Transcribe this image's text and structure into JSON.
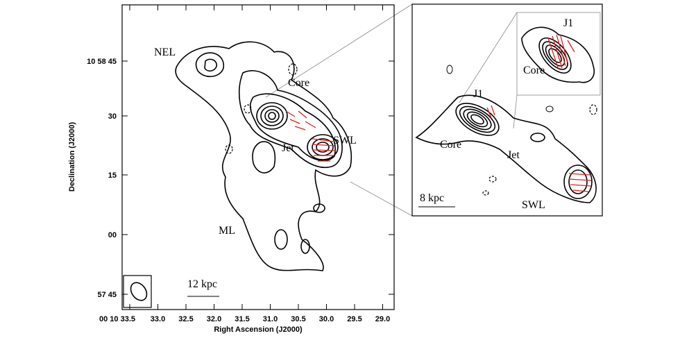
{
  "left_panel": {
    "y_axis_label": "Declination (J2000)",
    "x_axis_label": "Right Ascension (J2000)",
    "y_tick_labels": [
      "10 58 45",
      "30",
      "15",
      "00",
      "57 45"
    ],
    "x_tick_labels": [
      "00 10 33.5",
      "33.0",
      "32.5",
      "32.0",
      "31.5",
      "31.0",
      "30.5",
      "30.0",
      "29.5",
      "29.0"
    ],
    "annotations": [
      "NEL",
      "Core",
      "SWL",
      "Jet",
      "ML"
    ],
    "scale_bar": "12 kpc"
  },
  "right_panel": {
    "annotations": [
      "J1",
      "Core",
      "Jet",
      "SWL"
    ],
    "scale_bar": "8 kpc",
    "inset": {
      "annotations": [
        "J1",
        "Core"
      ]
    }
  }
}
